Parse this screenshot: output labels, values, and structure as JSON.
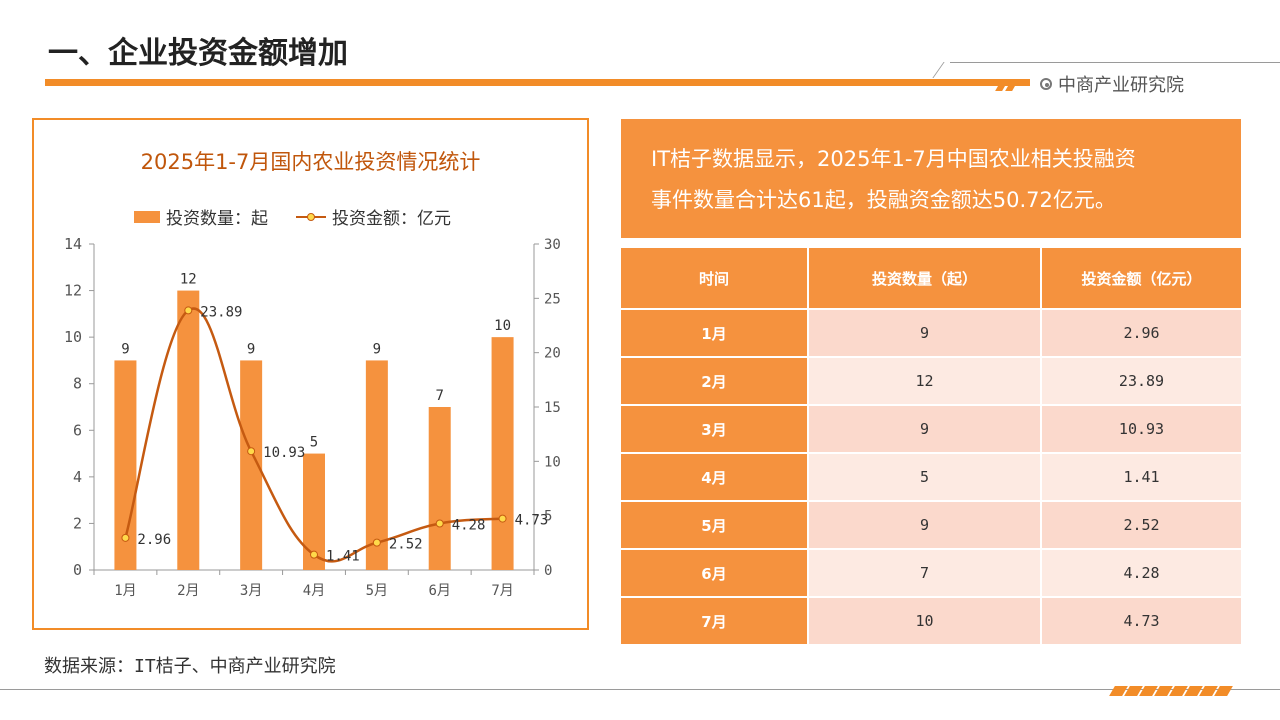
{
  "page": {
    "title": "一、企业投资金额增加",
    "brand": "中商产业研究院",
    "source": "数据来源：IT桔子、中商产业研究院",
    "summary_line1": "IT桔子数据显示，2025年1-7月中国农业相关投融资",
    "summary_line2": "事件数量合计达61起，投融资金额达50.72亿元。"
  },
  "colors": {
    "accent": "#F28C28",
    "bar": "#F5923E",
    "line": "#C55A11",
    "marker": "#FFD94A",
    "chart_title": "#C0560B",
    "row_odd": "#FBD9CC",
    "row_even": "#FDEAE2"
  },
  "chart_data": {
    "type": "bar",
    "title": "2025年1-7月国内农业投资情况统计",
    "categories": [
      "1月",
      "2月",
      "3月",
      "4月",
      "5月",
      "6月",
      "7月"
    ],
    "series": [
      {
        "name": "投资数量：起",
        "type": "bar",
        "axis": "left",
        "values": [
          9,
          12,
          9,
          5,
          9,
          7,
          10
        ]
      },
      {
        "name": "投资金额：亿元",
        "type": "line",
        "axis": "right",
        "values": [
          2.96,
          23.89,
          10.93,
          1.41,
          2.52,
          4.28,
          4.73
        ]
      }
    ],
    "y_left": {
      "min": 0,
      "max": 14,
      "step": 2,
      "ticks": [
        "0",
        "2",
        "4",
        "6",
        "8",
        "10",
        "12",
        "14"
      ]
    },
    "y_right": {
      "min": 0,
      "max": 30,
      "step": 5,
      "ticks": [
        "0",
        "5",
        "10",
        "15",
        "20",
        "25",
        "30"
      ]
    },
    "bar_labels": [
      "9",
      "12",
      "9",
      "5",
      "9",
      "7",
      "10"
    ],
    "line_labels": [
      "2.96",
      "23.89",
      "10.93",
      "1.41",
      "2.52",
      "4.28",
      "4.73"
    ],
    "legend_position": "top",
    "grid": false
  },
  "table": {
    "headers": [
      "时间",
      "投资数量（起）",
      "投资金额（亿元）"
    ],
    "rows": [
      {
        "month": "1月",
        "count": "9",
        "amount": "2.96"
      },
      {
        "month": "2月",
        "count": "12",
        "amount": "23.89"
      },
      {
        "month": "3月",
        "count": "9",
        "amount": "10.93"
      },
      {
        "month": "4月",
        "count": "5",
        "amount": "1.41"
      },
      {
        "month": "5月",
        "count": "9",
        "amount": "2.52"
      },
      {
        "month": "6月",
        "count": "7",
        "amount": "4.28"
      },
      {
        "month": "7月",
        "count": "10",
        "amount": "4.73"
      }
    ]
  }
}
